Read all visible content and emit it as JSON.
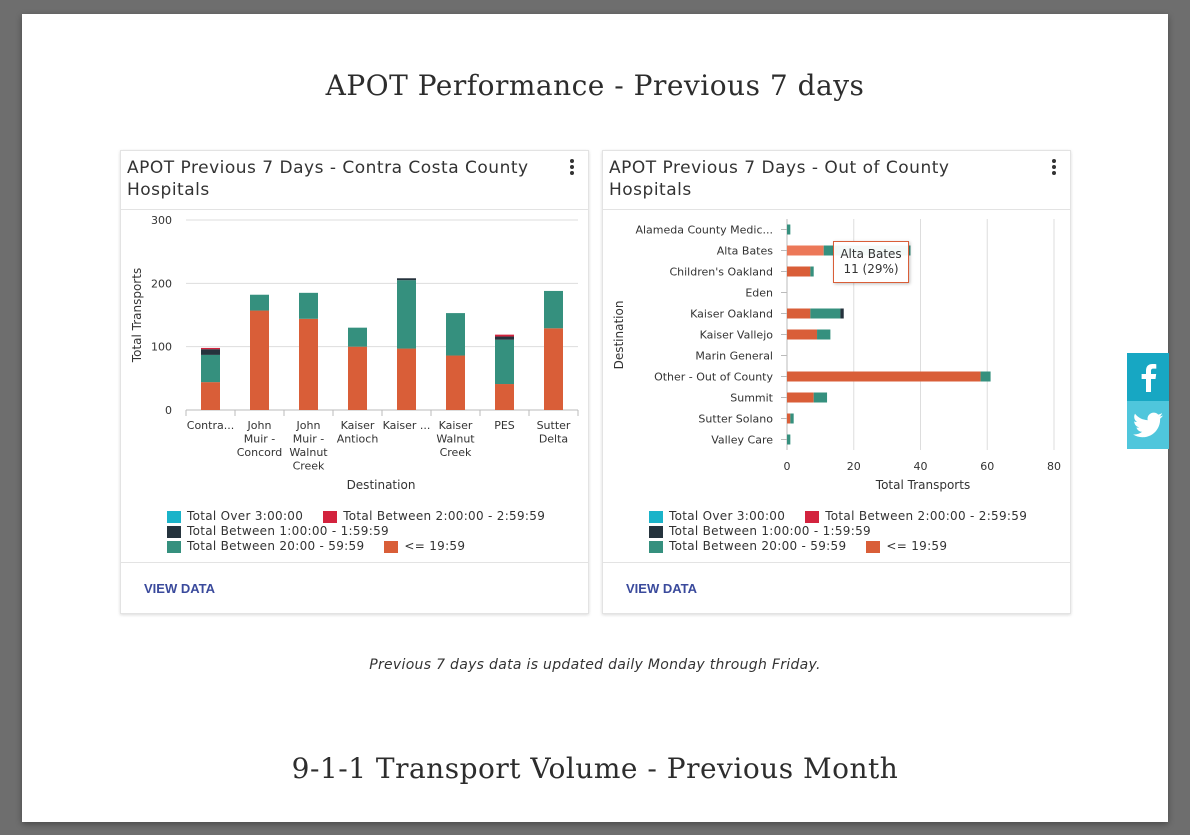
{
  "page": {
    "heading_apot": "APOT Performance - Previous 7 days",
    "heading_volume": "9-1-1 Transport Volume - Previous Month",
    "note": "Previous 7 days data is updated daily Monday through Friday."
  },
  "colors": {
    "over3": "#1ab3c9",
    "b2to3": "#d3233e",
    "b1to2": "#25333d",
    "b20to59": "#35907e",
    "le19": "#d95e38",
    "facebook": "#17a7c3",
    "twitter": "#4fc6dc"
  },
  "legend": {
    "over3": "Total Over 3:00:00",
    "b2to3": "Total Between 2:00:00 - 2:59:59",
    "b1to2": "Total Between 1:00:00 - 1:59:59",
    "b20to59": "Total Between 20:00 - 59:59",
    "le19": "<= 19:59"
  },
  "card1": {
    "title": "APOT Previous 7 Days - Contra Costa County Hospitals",
    "view_data": "VIEW DATA",
    "menu_icon": "kebab-menu-icon"
  },
  "card2": {
    "title": "APOT Previous 7 Days - Out of County Hospitals",
    "view_data": "VIEW DATA",
    "menu_icon": "kebab-menu-icon"
  },
  "tooltip": {
    "title": "Alta Bates",
    "value": "11 (29%)"
  },
  "social": {
    "facebook_icon": "facebook-icon",
    "twitter_icon": "twitter-icon"
  },
  "chart_data": [
    {
      "type": "bar",
      "orientation": "vertical",
      "stacked": true,
      "title": "APOT Previous 7 Days - Contra Costa County Hospitals",
      "xlabel": "Destination",
      "ylabel": "Total Transports",
      "ylim": [
        0,
        300
      ],
      "yticks": [
        0,
        100,
        200,
        300
      ],
      "grid": true,
      "legend_position": "bottom",
      "categories": [
        [
          "Contra..."
        ],
        [
          "John",
          "Muir -",
          "Concord"
        ],
        [
          "John",
          "Muir -",
          "Walnut",
          "Creek"
        ],
        [
          "Kaiser",
          "Antioch"
        ],
        [
          "Kaiser ..."
        ],
        [
          "Kaiser",
          "Walnut",
          "Creek"
        ],
        [
          "PES"
        ],
        [
          "Sutter",
          "Delta"
        ]
      ],
      "series": [
        {
          "name": "<= 19:59",
          "key": "le19",
          "values": [
            44,
            157,
            144,
            100,
            97,
            86,
            41,
            129
          ]
        },
        {
          "name": "Total Between 20:00 - 59:59",
          "key": "b20to59",
          "values": [
            43,
            25,
            41,
            30,
            108,
            67,
            70,
            59
          ]
        },
        {
          "name": "Total Between 1:00:00 - 1:59:59",
          "key": "b1to2",
          "values": [
            9,
            0,
            0,
            0,
            3,
            0,
            5,
            0
          ]
        },
        {
          "name": "Total Between 2:00:00 - 2:59:59",
          "key": "b2to3",
          "values": [
            2,
            0,
            0,
            0,
            0,
            0,
            3,
            0
          ]
        },
        {
          "name": "Total Over 3:00:00",
          "key": "over3",
          "values": [
            0,
            0,
            0,
            0,
            0,
            0,
            0,
            0
          ]
        }
      ]
    },
    {
      "type": "bar",
      "orientation": "horizontal",
      "stacked": true,
      "title": "APOT Previous 7 Days - Out of County Hospitals",
      "xlabel": "Total Transports",
      "ylabel": "Destination",
      "xlim": [
        0,
        80
      ],
      "xticks": [
        0,
        20,
        40,
        60,
        80
      ],
      "grid": true,
      "legend_position": "bottom",
      "categories": [
        "Alameda County Medic...",
        "Alta Bates",
        "Children's Oakland",
        "Eden",
        "Kaiser Oakland",
        "Kaiser Vallejo",
        "Marin General",
        "Other - Out of County",
        "Summit",
        "Sutter Solano",
        "Valley Care"
      ],
      "series": [
        {
          "name": "<= 19:59",
          "key": "le19",
          "values": [
            0,
            11,
            7,
            0,
            7,
            9,
            0,
            58,
            8,
            1,
            0
          ]
        },
        {
          "name": "Total Between 20:00 - 59:59",
          "key": "b20to59",
          "values": [
            1,
            26,
            1,
            0,
            9,
            4,
            0,
            3,
            4,
            1,
            1
          ]
        },
        {
          "name": "Total Between 1:00:00 - 1:59:59",
          "key": "b1to2",
          "values": [
            0,
            0,
            0,
            0,
            1,
            0,
            0,
            0,
            0,
            0,
            0
          ]
        },
        {
          "name": "Total Between 2:00:00 - 2:59:59",
          "key": "b2to3",
          "values": [
            0,
            0,
            0,
            0,
            0,
            0,
            0,
            0,
            0,
            0,
            0
          ]
        },
        {
          "name": "Total Over 3:00:00",
          "key": "over3",
          "values": [
            0,
            0,
            0,
            0,
            0,
            0,
            0,
            0,
            0,
            0,
            0
          ]
        }
      ]
    }
  ]
}
